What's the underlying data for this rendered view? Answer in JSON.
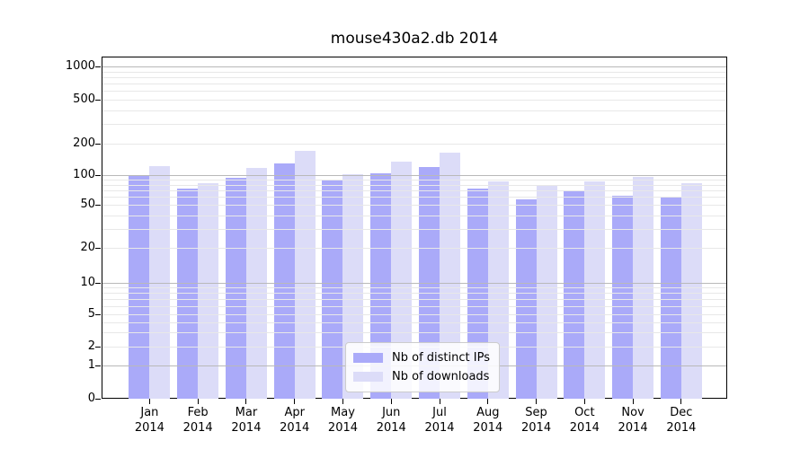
{
  "title": "mouse430a2.db 2014",
  "colors": {
    "bar_ips": "#aaaaf9",
    "bar_downloads": "#dcdcf8",
    "grid_minor": "#e8e8e8",
    "grid_major": "#b9b9b9",
    "axis": "#000000",
    "legend_border": "#cccccc",
    "background": "#ffffff"
  },
  "legend": {
    "items": [
      {
        "label": "Nb of distinct IPs",
        "color_key": "bar_ips"
      },
      {
        "label": "Nb of downloads",
        "color_key": "bar_downloads"
      }
    ]
  },
  "chart_data": {
    "type": "bar",
    "title": "mouse430a2.db 2014",
    "categories": [
      "Jan 2014",
      "Feb 2014",
      "Mar 2014",
      "Apr 2014",
      "May 2014",
      "Jun 2014",
      "Jul 2014",
      "Aug 2014",
      "Sep 2014",
      "Oct 2014",
      "Nov 2014",
      "Dec 2014"
    ],
    "series": [
      {
        "name": "Nb of distinct IPs",
        "values": [
          97,
          73,
          93,
          130,
          90,
          105,
          120,
          73,
          57,
          68,
          62,
          61
        ]
      },
      {
        "name": "Nb of downloads",
        "values": [
          122,
          82,
          118,
          172,
          103,
          135,
          164,
          87,
          79,
          86,
          96,
          83
        ]
      }
    ],
    "xlabel": "",
    "ylabel": "",
    "yscale": "symlog",
    "yticks": [
      1000,
      500,
      200,
      100,
      50,
      20,
      10,
      5,
      2,
      1,
      0
    ],
    "ylim": [
      0,
      1230
    ],
    "grid": "both",
    "legend_position": "lower center"
  }
}
